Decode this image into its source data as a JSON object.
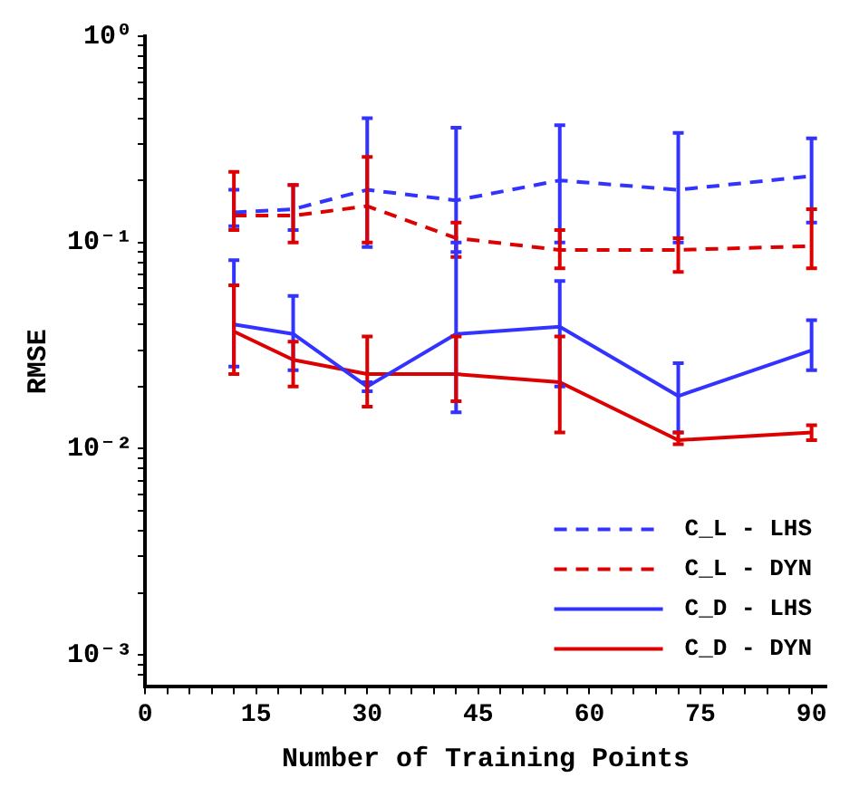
{
  "chart_data": {
    "type": "line",
    "xlabel": "Number of Training Points",
    "ylabel": "RMSE",
    "log": "y",
    "grid": false,
    "legend": "bottom right",
    "marker": "none",
    "x": [
      12,
      20,
      30,
      42,
      56,
      72,
      90
    ],
    "xlim": [
      0,
      92
    ],
    "xticks": [
      0,
      {
        "value": 3,
        "label": null
      },
      {
        "value": 6,
        "label": null
      },
      {
        "value": 9,
        "label": null
      },
      {
        "value": 12,
        "label": null
      },
      15,
      {
        "value": 18,
        "label": null
      },
      {
        "value": 21,
        "label": null
      },
      {
        "value": 24,
        "label": null
      },
      {
        "value": 27,
        "label": null
      },
      30,
      {
        "value": 33,
        "label": null
      },
      {
        "value": 36,
        "label": null
      },
      {
        "value": 39,
        "label": null
      },
      {
        "value": 42,
        "label": null
      },
      45,
      {
        "value": 48,
        "label": null
      },
      {
        "value": 51,
        "label": null
      },
      {
        "value": 54,
        "label": null
      },
      {
        "value": 57,
        "label": null
      },
      60,
      {
        "value": 63,
        "label": null
      },
      {
        "value": 66,
        "label": null
      },
      {
        "value": 69,
        "label": null
      },
      {
        "value": 72,
        "label": null
      },
      75,
      {
        "value": 78,
        "label": null
      },
      {
        "value": 81,
        "label": null
      },
      {
        "value": 84,
        "label": null
      },
      {
        "value": 87,
        "label": null
      },
      90
    ],
    "ylim": [
      0.0007,
      1
    ],
    "yticks": [
      {
        "value": 0.0008,
        "label": null
      },
      {
        "value": 0.0009,
        "label": null
      },
      {
        "value": 0.001,
        "label": "10⁻³"
      },
      {
        "value": 0.002,
        "label": null
      },
      {
        "value": 0.003,
        "label": null
      },
      {
        "value": 0.004,
        "label": null
      },
      {
        "value": 0.005,
        "label": null
      },
      {
        "value": 0.006,
        "label": null
      },
      {
        "value": 0.007,
        "label": null
      },
      {
        "value": 0.008,
        "label": null
      },
      {
        "value": 0.009,
        "label": null
      },
      {
        "value": 0.01,
        "label": "10⁻²"
      },
      {
        "value": 0.02,
        "label": null
      },
      {
        "value": 0.03,
        "label": null
      },
      {
        "value": 0.04,
        "label": null
      },
      {
        "value": 0.05,
        "label": null
      },
      {
        "value": 0.06,
        "label": null
      },
      {
        "value": 0.07,
        "label": null
      },
      {
        "value": 0.08,
        "label": null
      },
      {
        "value": 0.09,
        "label": null
      },
      {
        "value": 0.1,
        "label": "10⁻¹"
      },
      {
        "value": 0.2,
        "label": null
      },
      {
        "value": 0.3,
        "label": null
      },
      {
        "value": 0.4,
        "label": null
      },
      {
        "value": 0.5,
        "label": null
      },
      {
        "value": 0.6,
        "label": null
      },
      {
        "value": 0.7,
        "label": null
      },
      {
        "value": 0.8,
        "label": null
      },
      {
        "value": 0.9,
        "label": null
      },
      {
        "value": 1,
        "label": "10⁰"
      }
    ],
    "series": [
      {
        "name": "C_L - LHS",
        "color": "#3333ff",
        "line_style": "dashed",
        "values": [
          0.14,
          0.145,
          0.18,
          0.16,
          0.2,
          0.18,
          0.21
        ],
        "errors": [
          [
            0.12,
            0.18
          ],
          [
            0.115,
            0.19
          ],
          [
            0.095,
            0.4
          ],
          [
            0.09,
            0.36
          ],
          [
            0.1,
            0.37
          ],
          [
            0.1,
            0.34
          ],
          [
            0.125,
            0.32
          ]
        ]
      },
      {
        "name": "C_L - DYN",
        "color": "#dd0000",
        "line_style": "dashed",
        "values": [
          0.135,
          0.135,
          0.15,
          0.105,
          0.092,
          0.092,
          0.096
        ],
        "errors": [
          [
            0.115,
            0.22
          ],
          [
            0.1,
            0.19
          ],
          [
            0.1,
            0.26
          ],
          [
            0.085,
            0.125
          ],
          [
            0.075,
            0.115
          ],
          [
            0.072,
            0.105
          ],
          [
            0.075,
            0.145
          ]
        ]
      },
      {
        "name": "C_D - LHS",
        "color": "#3333ff",
        "line_style": "solid",
        "values": [
          0.04,
          0.036,
          0.02,
          0.036,
          0.039,
          0.018,
          0.03
        ],
        "errors": [
          [
            0.025,
            0.082
          ],
          [
            0.024,
            0.055
          ],
          [
            0.019,
            0.021
          ],
          [
            0.015,
            0.1
          ],
          [
            0.02,
            0.065
          ],
          [
            0.012,
            0.026
          ],
          [
            0.024,
            0.042
          ]
        ]
      },
      {
        "name": "C_D - DYN",
        "color": "#dd0000",
        "line_style": "solid",
        "values": [
          0.037,
          0.027,
          0.023,
          0.023,
          0.021,
          0.011,
          0.012
        ],
        "errors": [
          [
            0.023,
            0.062
          ],
          [
            0.02,
            0.033
          ],
          [
            0.016,
            0.035
          ],
          [
            0.017,
            0.035
          ],
          [
            0.012,
            0.035
          ],
          [
            0.0105,
            0.012
          ],
          [
            0.011,
            0.013
          ]
        ]
      }
    ]
  }
}
